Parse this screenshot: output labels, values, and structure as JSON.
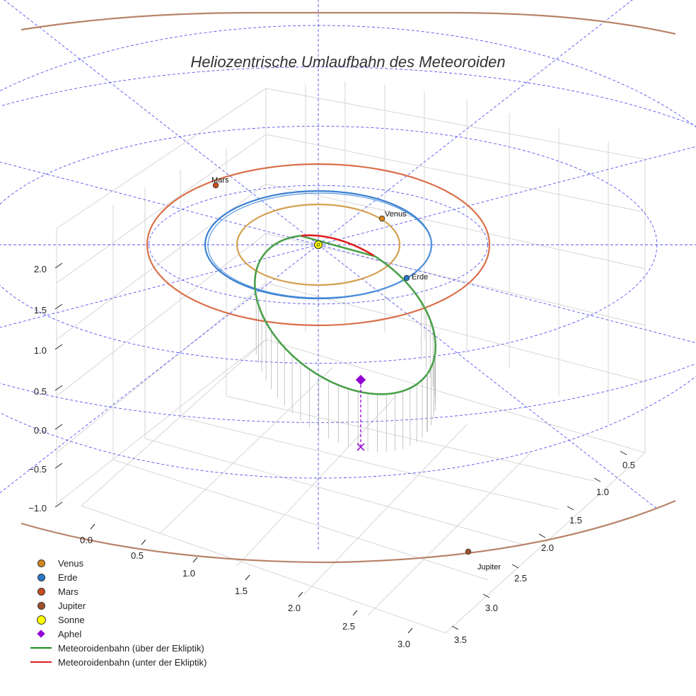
{
  "chart_data": {
    "type": "3d-orbit",
    "title": "Heliozentrische Umlaufbahn des Meteoroiden",
    "axes": {
      "x_ticks": [
        "0.0",
        "0.5",
        "1.0",
        "1.5",
        "2.0",
        "2.5",
        "3.0"
      ],
      "y_ticks": [
        "0.5",
        "1.0",
        "1.5",
        "2.0",
        "2.5",
        "3.0",
        "3.5"
      ],
      "z_ticks": [
        "−1.0",
        "−0.5",
        "0.0",
        "0.5",
        "1.0",
        "1.5",
        "2.0"
      ],
      "xlim": [
        0.0,
        3.0
      ],
      "ylim": [
        0.5,
        3.5
      ],
      "zlim": [
        -1.0,
        2.0
      ]
    },
    "planet_orbits": [
      {
        "name": "Venus",
        "radius_au": 0.72,
        "color": "#d4a050",
        "position_label": "Venus"
      },
      {
        "name": "Erde",
        "radius_au": 1.0,
        "color": "#3a7fd0",
        "position_label": "Erde"
      },
      {
        "name": "Mars",
        "radius_au": 1.52,
        "color": "#d9704a",
        "position_label": "Mars"
      },
      {
        "name": "Jupiter",
        "radius_au": 5.2,
        "color": "#b8836a",
        "position_label": "Jupiter"
      }
    ],
    "sun": {
      "name": "Sonne",
      "color": "#ffff00"
    },
    "meteoroid_orbit": {
      "above_ecliptic_color": "#2e8b2e",
      "below_ecliptic_color": "#e02020",
      "aphel_color": "#9400d3"
    },
    "ecliptic_grid": {
      "color": "#5555ee",
      "style": "dashed"
    },
    "legend": {
      "position": "bottom-left",
      "items": [
        {
          "label": "Venus",
          "symbol": "dot",
          "color": "#d4861c"
        },
        {
          "label": "Erde",
          "symbol": "dot",
          "color": "#2a78c8"
        },
        {
          "label": "Mars",
          "symbol": "dot",
          "color": "#c84c1c"
        },
        {
          "label": "Jupiter",
          "symbol": "dot",
          "color": "#a0502c"
        },
        {
          "label": "Sonne",
          "symbol": "dot-big",
          "color": "#ffff00"
        },
        {
          "label": "Aphel",
          "symbol": "diamond",
          "color": "#9400d3"
        },
        {
          "label": "Meteoroidenbahn (über der Ekliptik)",
          "symbol": "line",
          "color": "#1a8a1a"
        },
        {
          "label": "Meteoroidenbahn (unter der Ekliptik)",
          "symbol": "line",
          "color": "#e02020"
        }
      ]
    }
  }
}
